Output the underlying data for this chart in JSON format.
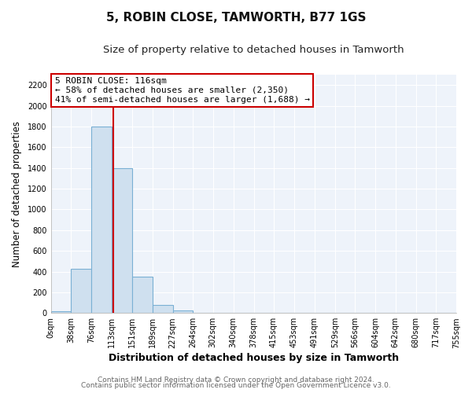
{
  "title": "5, ROBIN CLOSE, TAMWORTH, B77 1GS",
  "subtitle": "Size of property relative to detached houses in Tamworth",
  "xlabel": "Distribution of detached houses by size in Tamworth",
  "ylabel": "Number of detached properties",
  "bin_edges": [
    0,
    38,
    76,
    113,
    151,
    189,
    227,
    264,
    302,
    340,
    378,
    415,
    453,
    491,
    529,
    566,
    604,
    642,
    680,
    717,
    755
  ],
  "bar_heights": [
    20,
    430,
    1800,
    1400,
    350,
    75,
    25,
    0,
    0,
    0,
    0,
    0,
    0,
    0,
    0,
    0,
    0,
    0,
    0,
    0
  ],
  "bar_color": "#cfe0ef",
  "bar_edge_color": "#7ab0d4",
  "property_line_x": 116,
  "property_line_color": "#cc0000",
  "annotation_title": "5 ROBIN CLOSE: 116sqm",
  "annotation_line1": "← 58% of detached houses are smaller (2,350)",
  "annotation_line2": "41% of semi-detached houses are larger (1,688) →",
  "annotation_box_color": "#ffffff",
  "annotation_box_edge_color": "#cc0000",
  "tick_labels": [
    "0sqm",
    "38sqm",
    "76sqm",
    "113sqm",
    "151sqm",
    "189sqm",
    "227sqm",
    "264sqm",
    "302sqm",
    "340sqm",
    "378sqm",
    "415sqm",
    "453sqm",
    "491sqm",
    "529sqm",
    "566sqm",
    "604sqm",
    "642sqm",
    "680sqm",
    "717sqm",
    "755sqm"
  ],
  "ylim": [
    0,
    2300
  ],
  "yticks": [
    0,
    200,
    400,
    600,
    800,
    1000,
    1200,
    1400,
    1600,
    1800,
    2000,
    2200
  ],
  "footer_line1": "Contains HM Land Registry data © Crown copyright and database right 2024.",
  "footer_line2": "Contains public sector information licensed under the Open Government Licence v3.0.",
  "bg_color": "#ffffff",
  "plot_bg_color": "#eef3fa",
  "grid_color": "#ffffff",
  "title_fontsize": 11,
  "subtitle_fontsize": 9.5,
  "xlabel_fontsize": 9,
  "ylabel_fontsize": 8.5,
  "tick_fontsize": 7,
  "annotation_fontsize": 8,
  "footer_fontsize": 6.5
}
